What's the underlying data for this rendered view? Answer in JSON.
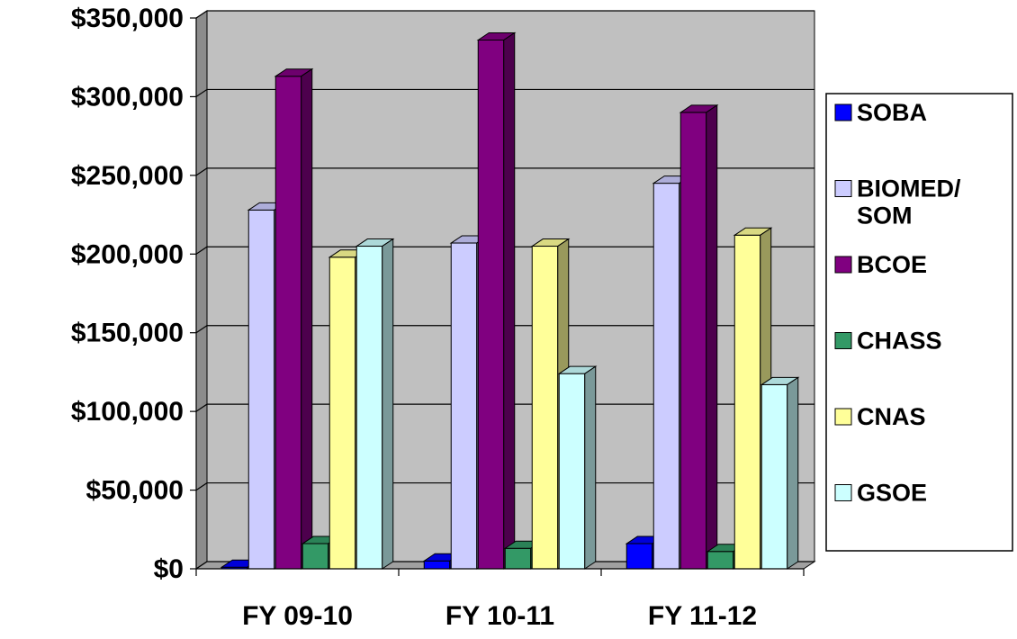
{
  "chart_data": {
    "type": "bar",
    "title": "",
    "xlabel": "",
    "ylabel": "",
    "ylim": [
      0,
      350000
    ],
    "y_ticks": [
      "$0",
      "$50,000",
      "$100,000",
      "$150,000",
      "$200,000",
      "$250,000",
      "$300,000",
      "$350,000"
    ],
    "y_tick_values": [
      0,
      50000,
      100000,
      150000,
      200000,
      250000,
      300000,
      350000
    ],
    "categories": [
      "FY 09-10",
      "FY 10-11",
      "FY 11-12"
    ],
    "grid": true,
    "legend_position": "right",
    "series": [
      {
        "name": "SOBA",
        "color": "#0000ff",
        "values": [
          1000,
          5000,
          16000
        ]
      },
      {
        "name": "BIOMED/ SOM",
        "color": "#ccccff",
        "values": [
          228000,
          207000,
          245000
        ]
      },
      {
        "name": "BCOE",
        "color": "#800080",
        "values": [
          313000,
          336000,
          290000
        ]
      },
      {
        "name": "CHASS",
        "color": "#339966",
        "values": [
          16000,
          13000,
          11000
        ]
      },
      {
        "name": "CNAS",
        "color": "#ffff99",
        "values": [
          198000,
          205000,
          212000
        ]
      },
      {
        "name": "GSOE",
        "color": "#ccffff",
        "values": [
          205000,
          124000,
          117000
        ]
      }
    ]
  }
}
